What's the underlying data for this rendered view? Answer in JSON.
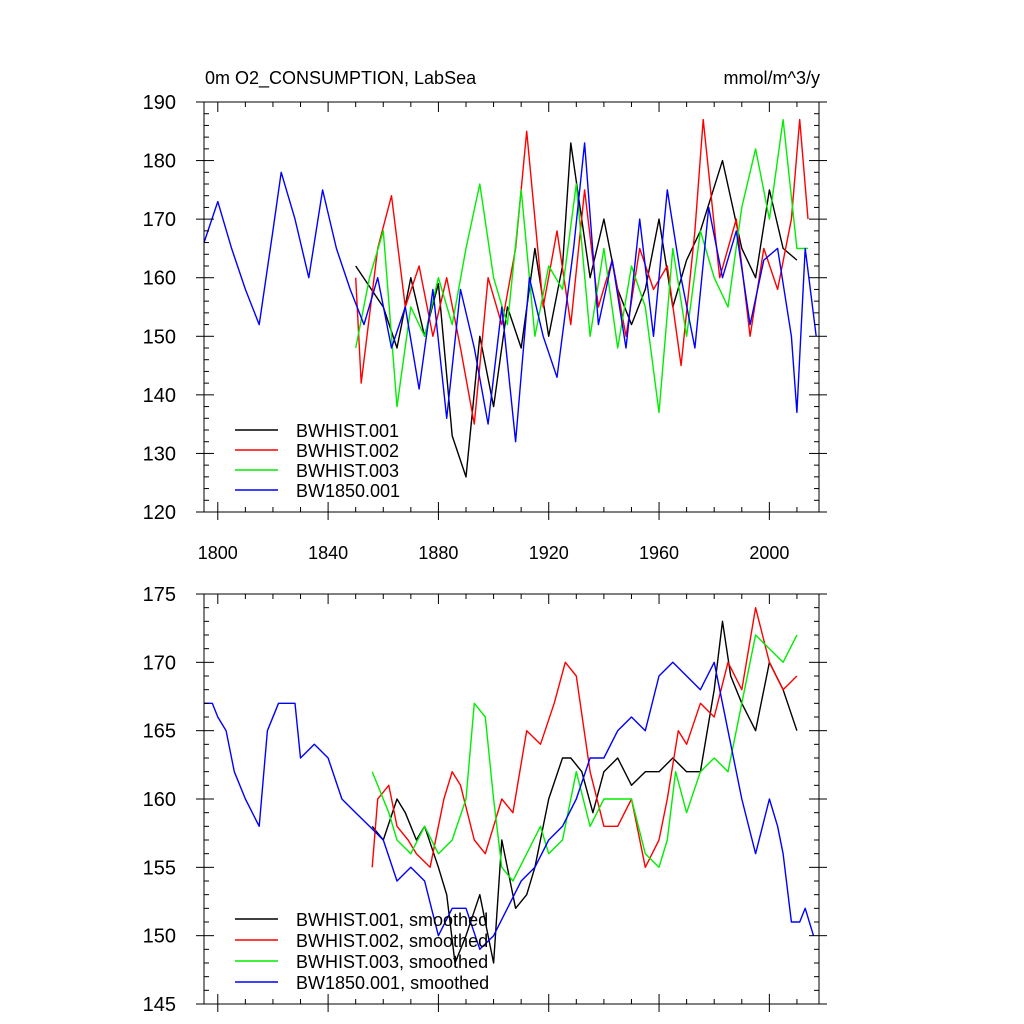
{
  "chart_data": [
    {
      "type": "line",
      "title": "0m O2_CONSUMPTION, LabSea",
      "units": "mmol/m^3/y",
      "xlabel": "",
      "ylabel": "",
      "xlim": [
        1795,
        2018
      ],
      "ylim": [
        120,
        190
      ],
      "xticks": [
        1800,
        1840,
        1880,
        1920,
        1960,
        2000
      ],
      "yticks": [
        120,
        130,
        140,
        150,
        160,
        170,
        180,
        190
      ],
      "legend_position": "bottom-left",
      "series": [
        {
          "name": "BWHIST.001",
          "color": "#000000",
          "x_start": 1850,
          "x_end": 2010,
          "x": [
            1850,
            1860,
            1865,
            1870,
            1875,
            1880,
            1885,
            1890,
            1895,
            1900,
            1905,
            1910,
            1915,
            1920,
            1925,
            1928,
            1935,
            1940,
            1945,
            1950,
            1955,
            1960,
            1965,
            1970,
            1975,
            1983,
            1990,
            1995,
            2000,
            2005,
            2010
          ],
          "values": [
            162,
            155,
            148,
            160,
            150,
            159,
            133,
            126,
            150,
            138,
            155,
            148,
            165,
            150,
            162,
            183,
            160,
            170,
            158,
            152,
            158,
            170,
            155,
            163,
            168,
            180,
            165,
            160,
            175,
            165,
            163
          ]
        },
        {
          "name": "BWHIST.002",
          "color": "#ff0000",
          "x_start": 1850,
          "x_end": 2014,
          "x": [
            1850,
            1852,
            1858,
            1863,
            1868,
            1873,
            1878,
            1883,
            1888,
            1893,
            1898,
            1903,
            1908,
            1912,
            1918,
            1923,
            1928,
            1933,
            1938,
            1943,
            1948,
            1953,
            1958,
            1963,
            1968,
            1973,
            1976,
            1982,
            1988,
            1993,
            1998,
            2003,
            2008,
            2011,
            2014
          ],
          "values": [
            160,
            142,
            165,
            174,
            155,
            162,
            150,
            160,
            148,
            135,
            160,
            152,
            165,
            185,
            155,
            168,
            152,
            175,
            155,
            163,
            150,
            165,
            158,
            162,
            145,
            168,
            187,
            160,
            170,
            150,
            165,
            158,
            170,
            187,
            170
          ]
        },
        {
          "name": "BWHIST.003",
          "color": "#00ee00",
          "x_start": 1850,
          "x_end": 2014,
          "x": [
            1850,
            1855,
            1860,
            1865,
            1870,
            1875,
            1880,
            1885,
            1890,
            1895,
            1900,
            1905,
            1910,
            1915,
            1920,
            1925,
            1930,
            1935,
            1940,
            1945,
            1950,
            1955,
            1960,
            1965,
            1970,
            1975,
            1980,
            1985,
            1990,
            1995,
            2000,
            2005,
            2010,
            2014
          ],
          "values": [
            148,
            160,
            168,
            138,
            155,
            150,
            160,
            152,
            165,
            176,
            160,
            152,
            175,
            150,
            162,
            158,
            176,
            150,
            165,
            148,
            162,
            155,
            137,
            165,
            150,
            168,
            160,
            155,
            172,
            182,
            170,
            187,
            165,
            165
          ]
        },
        {
          "name": "BW1850.001",
          "color": "#0000ff",
          "x_start": 1795,
          "x_end": 2017,
          "x": [
            1795,
            1800,
            1805,
            1810,
            1815,
            1820,
            1823,
            1828,
            1833,
            1838,
            1843,
            1848,
            1853,
            1858,
            1863,
            1868,
            1873,
            1878,
            1883,
            1888,
            1893,
            1898,
            1903,
            1908,
            1913,
            1918,
            1923,
            1929,
            1933,
            1938,
            1943,
            1948,
            1953,
            1958,
            1963,
            1968,
            1973,
            1978,
            1983,
            1988,
            1993,
            1998,
            2003,
            2008,
            2010,
            2013,
            2017
          ],
          "values": [
            166,
            173,
            165,
            158,
            152,
            168,
            178,
            170,
            160,
            175,
            165,
            158,
            152,
            160,
            148,
            155,
            141,
            158,
            136,
            158,
            148,
            135,
            155,
            132,
            160,
            150,
            143,
            165,
            183,
            152,
            163,
            148,
            170,
            150,
            175,
            160,
            148,
            172,
            160,
            168,
            152,
            163,
            165,
            150,
            137,
            165,
            150
          ]
        }
      ]
    },
    {
      "type": "line",
      "title": "",
      "xlabel": "",
      "ylabel": "",
      "xlim": [
        1795,
        2018
      ],
      "ylim": [
        145,
        175
      ],
      "xticks": [
        1800,
        1840,
        1880,
        1920,
        1960,
        2000
      ],
      "yticks": [
        145,
        150,
        155,
        160,
        165,
        170,
        175
      ],
      "legend_position": "bottom-left",
      "series": [
        {
          "name": "BWHIST.001, smoothed",
          "color": "#000000",
          "x": [
            1856,
            1860,
            1865,
            1868,
            1872,
            1875,
            1880,
            1883,
            1886,
            1890,
            1895,
            1900,
            1903,
            1908,
            1912,
            1915,
            1920,
            1925,
            1928,
            1932,
            1936,
            1940,
            1945,
            1950,
            1955,
            1960,
            1965,
            1970,
            1975,
            1980,
            1983,
            1986,
            1990,
            1995,
            2000,
            2005,
            2010
          ],
          "values": [
            158,
            157,
            160,
            159,
            157,
            158,
            155,
            153,
            148,
            150,
            153,
            148,
            157,
            152,
            153,
            155,
            160,
            163,
            163,
            162,
            159,
            162,
            163,
            161,
            162,
            162,
            163,
            162,
            162,
            168,
            173,
            169,
            167,
            165,
            170,
            168,
            165
          ]
        },
        {
          "name": "BWHIST.002, smoothed",
          "color": "#ff0000",
          "x": [
            1856,
            1858,
            1862,
            1865,
            1869,
            1872,
            1877,
            1882,
            1885,
            1888,
            1893,
            1897,
            1900,
            1903,
            1907,
            1912,
            1917,
            1922,
            1926,
            1930,
            1935,
            1940,
            1945,
            1950,
            1955,
            1960,
            1963,
            1967,
            1970,
            1975,
            1980,
            1985,
            1990,
            1995,
            2000,
            2005,
            2010
          ],
          "values": [
            155,
            160,
            161,
            158,
            157,
            156,
            155,
            160,
            162,
            161,
            157,
            156,
            158,
            160,
            159,
            165,
            164,
            167,
            170,
            169,
            162,
            158,
            158,
            160,
            155,
            157,
            160,
            165,
            164,
            167,
            166,
            170,
            168,
            174,
            170,
            168,
            169
          ]
        },
        {
          "name": "BWHIST.003, smoothed",
          "color": "#00ee00",
          "x": [
            1856,
            1858,
            1862,
            1865,
            1870,
            1875,
            1880,
            1885,
            1890,
            1893,
            1897,
            1900,
            1903,
            1907,
            1912,
            1917,
            1920,
            1925,
            1930,
            1935,
            1940,
            1945,
            1950,
            1955,
            1960,
            1963,
            1966,
            1970,
            1975,
            1980,
            1985,
            1990,
            1995,
            2000,
            2005,
            2010
          ],
          "values": [
            162,
            161,
            159,
            157,
            156,
            158,
            156,
            157,
            160,
            167,
            166,
            160,
            155,
            154,
            156,
            158,
            156,
            157,
            162,
            158,
            160,
            160,
            160,
            156,
            155,
            157,
            162,
            159,
            162,
            163,
            162,
            167,
            172,
            171,
            170,
            172
          ]
        },
        {
          "name": "BW1850.001, smoothed",
          "color": "#0000ff",
          "x": [
            1795,
            1798,
            1800,
            1803,
            1806,
            1810,
            1815,
            1818,
            1822,
            1828,
            1830,
            1835,
            1840,
            1845,
            1850,
            1855,
            1860,
            1865,
            1870,
            1875,
            1880,
            1885,
            1890,
            1895,
            1900,
            1905,
            1910,
            1915,
            1920,
            1925,
            1930,
            1935,
            1940,
            1945,
            1950,
            1955,
            1960,
            1965,
            1970,
            1975,
            1980,
            1985,
            1990,
            1995,
            2000,
            2003,
            2005,
            2008,
            2011,
            2013,
            2016
          ],
          "values": [
            167,
            167,
            166,
            165,
            162,
            160,
            158,
            165,
            167,
            167,
            163,
            164,
            163,
            160,
            159,
            158,
            157,
            154,
            155,
            154,
            150,
            152,
            152,
            149,
            150,
            152,
            154,
            155,
            157,
            158,
            160,
            163,
            163,
            165,
            166,
            165,
            169,
            170,
            169,
            168,
            170,
            165,
            160,
            156,
            160,
            158,
            156,
            151,
            151,
            152,
            150
          ]
        }
      ]
    }
  ]
}
